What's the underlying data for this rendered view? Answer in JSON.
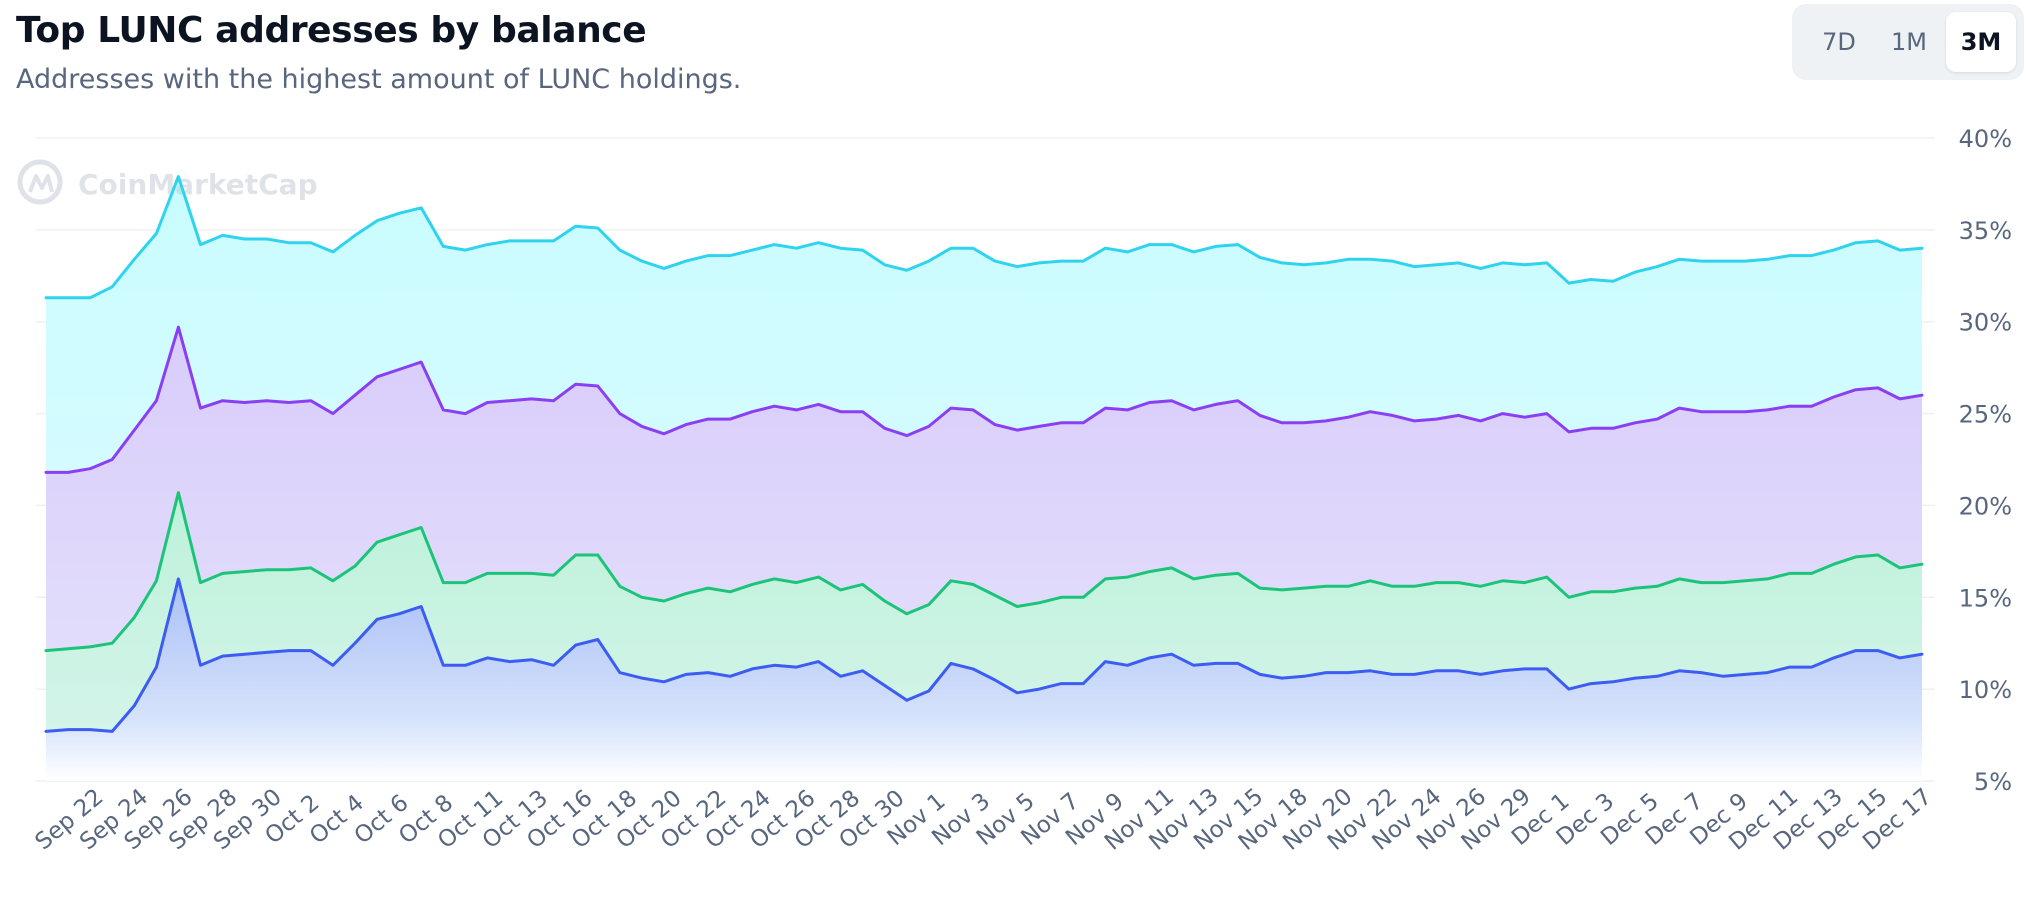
{
  "header": {
    "title": "Top LUNC addresses by balance",
    "subtitle": "Addresses with the highest amount of LUNC holdings."
  },
  "range_switch": {
    "options": [
      "7D",
      "1M",
      "3M"
    ],
    "selected": "3M"
  },
  "watermark": {
    "text": "CoinMarketCap"
  },
  "colors": {
    "cyan": "#2fd3ee",
    "purple": "#8a3ff3",
    "green": "#1cc47a",
    "blue": "#3d5cf1",
    "grid": "#eef0f3",
    "axis_text": "#58667e"
  },
  "chart_data": {
    "type": "area",
    "title": "Top LUNC addresses by balance",
    "ylabel": "",
    "xlabel": "",
    "ylim": [
      5,
      40
    ],
    "y_ticks": [
      5,
      10,
      15,
      20,
      25,
      30,
      35,
      40
    ],
    "y_tick_labels": [
      "5%",
      "10%",
      "15%",
      "20%",
      "25%",
      "30%",
      "35%",
      "40%"
    ],
    "grid": true,
    "x_tick_labels": [
      "Sep 22",
      "Sep 24",
      "Sep 26",
      "Sep 28",
      "Sep 30",
      "Oct 2",
      "Oct 4",
      "Oct 6",
      "Oct 8",
      "Oct 11",
      "Oct 13",
      "Oct 16",
      "Oct 18",
      "Oct 20",
      "Oct 22",
      "Oct 24",
      "Oct 26",
      "Oct 28",
      "Oct 30",
      "Nov 1",
      "Nov 3",
      "Nov 5",
      "Nov 7",
      "Nov 9",
      "Nov 11",
      "Nov 13",
      "Nov 15",
      "Nov 18",
      "Nov 20",
      "Nov 22",
      "Nov 24",
      "Nov 26",
      "Nov 29",
      "Dec 1",
      "Dec 3",
      "Dec 5",
      "Dec 7",
      "Dec 9",
      "Dec 11",
      "Dec 13",
      "Dec 15",
      "Dec 17"
    ],
    "series": [
      {
        "name": "cyan",
        "color": "#2fd3ee",
        "values": [
          31.3,
          31.3,
          31.3,
          31.9,
          33.4,
          34.8,
          37.9,
          34.2,
          34.7,
          34.5,
          34.5,
          34.3,
          34.3,
          33.8,
          34.7,
          35.5,
          35.9,
          36.2,
          34.1,
          33.9,
          34.2,
          34.4,
          34.4,
          34.4,
          35.2,
          35.1,
          33.9,
          33.3,
          32.9,
          33.3,
          33.6,
          33.6,
          33.9,
          34.2,
          34.0,
          34.3,
          34.0,
          33.9,
          33.1,
          32.8,
          33.3,
          34.0,
          34.0,
          33.3,
          33.0,
          33.2,
          33.3,
          33.3,
          34.0,
          33.8,
          34.2,
          34.2,
          33.8,
          34.1,
          34.2,
          33.5,
          33.2,
          33.1,
          33.2,
          33.4,
          33.4,
          33.3,
          33.0,
          33.1,
          33.2,
          32.9,
          33.2,
          33.1,
          33.2,
          32.1,
          32.3,
          32.2,
          32.7,
          33.0,
          33.4,
          33.3,
          33.3,
          33.3,
          33.4,
          33.6,
          33.6,
          33.9,
          34.3,
          34.4,
          33.9,
          34.0
        ]
      },
      {
        "name": "purple",
        "color": "#8a3ff3",
        "values": [
          21.8,
          21.8,
          22.0,
          22.5,
          24.1,
          25.7,
          29.7,
          25.3,
          25.7,
          25.6,
          25.7,
          25.6,
          25.7,
          25.0,
          26.0,
          27.0,
          27.4,
          27.8,
          25.2,
          25.0,
          25.6,
          25.7,
          25.8,
          25.7,
          26.6,
          26.5,
          25.0,
          24.3,
          23.9,
          24.4,
          24.7,
          24.7,
          25.1,
          25.4,
          25.2,
          25.5,
          25.1,
          25.1,
          24.2,
          23.8,
          24.3,
          25.3,
          25.2,
          24.4,
          24.1,
          24.3,
          24.5,
          24.5,
          25.3,
          25.2,
          25.6,
          25.7,
          25.2,
          25.5,
          25.7,
          24.9,
          24.5,
          24.5,
          24.6,
          24.8,
          25.1,
          24.9,
          24.6,
          24.7,
          24.9,
          24.6,
          25.0,
          24.8,
          25.0,
          24.0,
          24.2,
          24.2,
          24.5,
          24.7,
          25.3,
          25.1,
          25.1,
          25.1,
          25.2,
          25.4,
          25.4,
          25.9,
          26.3,
          26.4,
          25.8,
          26.0
        ]
      },
      {
        "name": "green",
        "color": "#1cc47a",
        "values": [
          12.1,
          12.2,
          12.3,
          12.5,
          13.9,
          15.9,
          20.7,
          15.8,
          16.3,
          16.4,
          16.5,
          16.5,
          16.6,
          15.9,
          16.7,
          18.0,
          18.4,
          18.8,
          15.8,
          15.8,
          16.3,
          16.3,
          16.3,
          16.2,
          17.3,
          17.3,
          15.6,
          15.0,
          14.8,
          15.2,
          15.5,
          15.3,
          15.7,
          16.0,
          15.8,
          16.1,
          15.4,
          15.7,
          14.8,
          14.1,
          14.6,
          15.9,
          15.7,
          15.1,
          14.5,
          14.7,
          15.0,
          15.0,
          16.0,
          16.1,
          16.4,
          16.6,
          16.0,
          16.2,
          16.3,
          15.5,
          15.4,
          15.5,
          15.6,
          15.6,
          15.9,
          15.6,
          15.6,
          15.8,
          15.8,
          15.6,
          15.9,
          15.8,
          16.1,
          15.0,
          15.3,
          15.3,
          15.5,
          15.6,
          16.0,
          15.8,
          15.8,
          15.9,
          16.0,
          16.3,
          16.3,
          16.8,
          17.2,
          17.3,
          16.6,
          16.8
        ]
      },
      {
        "name": "blue",
        "color": "#3d5cf1",
        "values": [
          7.7,
          7.8,
          7.8,
          7.7,
          9.1,
          11.2,
          16.0,
          11.3,
          11.8,
          11.9,
          12.0,
          12.1,
          12.1,
          11.3,
          12.5,
          13.8,
          14.1,
          14.5,
          11.3,
          11.3,
          11.7,
          11.5,
          11.6,
          11.3,
          12.4,
          12.7,
          10.9,
          10.6,
          10.4,
          10.8,
          10.9,
          10.7,
          11.1,
          11.3,
          11.2,
          11.5,
          10.7,
          11.0,
          10.2,
          9.4,
          9.9,
          11.4,
          11.1,
          10.5,
          9.8,
          10.0,
          10.3,
          10.3,
          11.5,
          11.3,
          11.7,
          11.9,
          11.3,
          11.4,
          11.4,
          10.8,
          10.6,
          10.7,
          10.9,
          10.9,
          11.0,
          10.8,
          10.8,
          11.0,
          11.0,
          10.8,
          11.0,
          11.1,
          11.1,
          10.0,
          10.3,
          10.4,
          10.6,
          10.7,
          11.0,
          10.9,
          10.7,
          10.8,
          10.9,
          11.2,
          11.2,
          11.7,
          12.1,
          12.1,
          11.7,
          11.9
        ]
      }
    ]
  }
}
